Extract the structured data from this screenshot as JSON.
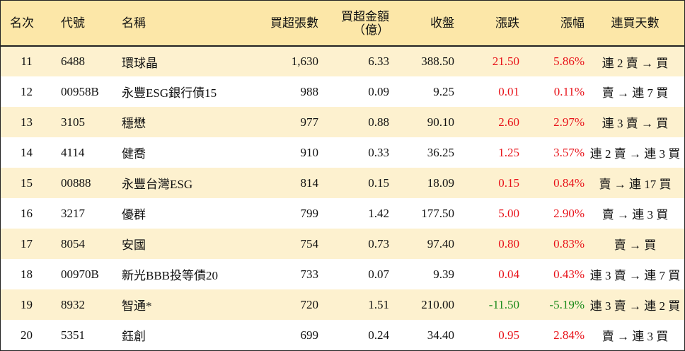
{
  "colors": {
    "header_bg": "#fce7a8",
    "odd_row_bg": "#fdf1cf",
    "even_row_bg": "#ffffff",
    "up": "#e8131a",
    "down": "#1a8a1a"
  },
  "headers": {
    "rank": "名次",
    "code": "代號",
    "name": "名稱",
    "net_buy_lots": "買超張數",
    "net_buy_amount_line1": "買超金額",
    "net_buy_amount_line2": "（億）",
    "close": "收盤",
    "change": "漲跌",
    "change_pct": "漲幅",
    "consecutive_days": "連買天數"
  },
  "rows": [
    {
      "rank": "11",
      "code": "6488",
      "name": "環球晶",
      "lots": "1,630",
      "amount": "6.33",
      "close": "388.50",
      "change": "21.50",
      "pct": "5.86%",
      "dir": "up",
      "days": "連 2 賣 → 買"
    },
    {
      "rank": "12",
      "code": "00958B",
      "name": "永豐ESG銀行債15",
      "lots": "988",
      "amount": "0.09",
      "close": "9.25",
      "change": "0.01",
      "pct": "0.11%",
      "dir": "up",
      "days": "賣 → 連 7 買"
    },
    {
      "rank": "13",
      "code": "3105",
      "name": "穩懋",
      "lots": "977",
      "amount": "0.88",
      "close": "90.10",
      "change": "2.60",
      "pct": "2.97%",
      "dir": "up",
      "days": "連 3 賣 → 買"
    },
    {
      "rank": "14",
      "code": "4114",
      "name": "健喬",
      "lots": "910",
      "amount": "0.33",
      "close": "36.25",
      "change": "1.25",
      "pct": "3.57%",
      "dir": "up",
      "days": "連 2 賣 → 連 3 買"
    },
    {
      "rank": "15",
      "code": "00888",
      "name": "永豐台灣ESG",
      "lots": "814",
      "amount": "0.15",
      "close": "18.09",
      "change": "0.15",
      "pct": "0.84%",
      "dir": "up",
      "days": "賣 → 連 17 買"
    },
    {
      "rank": "16",
      "code": "3217",
      "name": "優群",
      "lots": "799",
      "amount": "1.42",
      "close": "177.50",
      "change": "5.00",
      "pct": "2.90%",
      "dir": "up",
      "days": "賣 → 連 3 買"
    },
    {
      "rank": "17",
      "code": "8054",
      "name": "安國",
      "lots": "754",
      "amount": "0.73",
      "close": "97.40",
      "change": "0.80",
      "pct": "0.83%",
      "dir": "up",
      "days": "賣 → 買"
    },
    {
      "rank": "18",
      "code": "00970B",
      "name": "新光BBB投等債20",
      "lots": "733",
      "amount": "0.07",
      "close": "9.39",
      "change": "0.04",
      "pct": "0.43%",
      "dir": "up",
      "days": "連 3 賣 → 連 7 買"
    },
    {
      "rank": "19",
      "code": "8932",
      "name": "智通*",
      "lots": "720",
      "amount": "1.51",
      "close": "210.00",
      "change": "-11.50",
      "pct": "-5.19%",
      "dir": "down",
      "days": "連 3 賣 → 連 2 買"
    },
    {
      "rank": "20",
      "code": "5351",
      "name": "鈺創",
      "lots": "699",
      "amount": "0.24",
      "close": "34.40",
      "change": "0.95",
      "pct": "2.84%",
      "dir": "up",
      "days": "賣 → 連 3 買"
    }
  ]
}
